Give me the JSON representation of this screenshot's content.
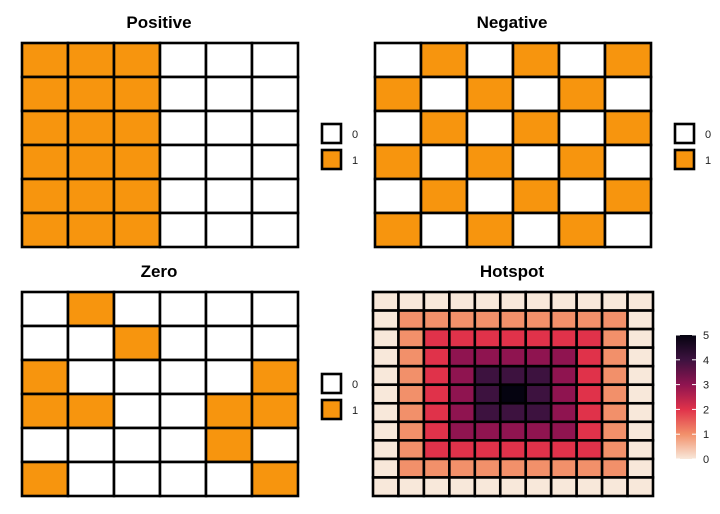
{
  "chart_data": [
    {
      "type": "heatmap",
      "title": "Positive",
      "rows": 6,
      "cols": 6,
      "values": [
        [
          1,
          1,
          1,
          0,
          0,
          0
        ],
        [
          1,
          1,
          1,
          0,
          0,
          0
        ],
        [
          1,
          1,
          1,
          0,
          0,
          0
        ],
        [
          1,
          1,
          1,
          0,
          0,
          0
        ],
        [
          1,
          1,
          1,
          0,
          0,
          0
        ],
        [
          1,
          1,
          1,
          0,
          0,
          0
        ]
      ],
      "legend": {
        "type": "discrete",
        "entries": [
          {
            "label": "0",
            "color": "#ffffff"
          },
          {
            "label": "1",
            "color": "#f7950e"
          }
        ]
      }
    },
    {
      "type": "heatmap",
      "title": "Negative",
      "rows": 6,
      "cols": 6,
      "values": [
        [
          0,
          1,
          0,
          1,
          0,
          1
        ],
        [
          1,
          0,
          1,
          0,
          1,
          0
        ],
        [
          0,
          1,
          0,
          1,
          0,
          1
        ],
        [
          1,
          0,
          1,
          0,
          1,
          0
        ],
        [
          0,
          1,
          0,
          1,
          0,
          1
        ],
        [
          1,
          0,
          1,
          0,
          1,
          0
        ]
      ],
      "legend": {
        "type": "discrete",
        "entries": [
          {
            "label": "0",
            "color": "#ffffff"
          },
          {
            "label": "1",
            "color": "#f7950e"
          }
        ]
      }
    },
    {
      "type": "heatmap",
      "title": "Zero",
      "rows": 6,
      "cols": 6,
      "values": [
        [
          0,
          1,
          0,
          0,
          0,
          0
        ],
        [
          0,
          0,
          1,
          0,
          0,
          0
        ],
        [
          1,
          0,
          0,
          0,
          0,
          1
        ],
        [
          1,
          1,
          0,
          0,
          1,
          1
        ],
        [
          0,
          0,
          0,
          0,
          1,
          0
        ],
        [
          1,
          0,
          0,
          0,
          0,
          1
        ]
      ],
      "legend": {
        "type": "discrete",
        "entries": [
          {
            "label": "0",
            "color": "#ffffff"
          },
          {
            "label": "1",
            "color": "#f7950e"
          }
        ]
      }
    },
    {
      "type": "heatmap",
      "title": "Hotspot",
      "rows": 11,
      "cols": 11,
      "values": [
        [
          0,
          0,
          0,
          0,
          0,
          0,
          0,
          0,
          0,
          0,
          0
        ],
        [
          0,
          1,
          1,
          1,
          1,
          1,
          1,
          1,
          1,
          1,
          0
        ],
        [
          0,
          1,
          2,
          2,
          2,
          2,
          2,
          2,
          2,
          1,
          0
        ],
        [
          0,
          1,
          2,
          3,
          3,
          3,
          3,
          3,
          2,
          1,
          0
        ],
        [
          0,
          1,
          2,
          3,
          4,
          4,
          4,
          3,
          2,
          1,
          0
        ],
        [
          0,
          1,
          2,
          3,
          4,
          5,
          4,
          3,
          2,
          1,
          0
        ],
        [
          0,
          1,
          2,
          3,
          4,
          4,
          4,
          3,
          2,
          1,
          0
        ],
        [
          0,
          1,
          2,
          3,
          3,
          3,
          3,
          3,
          2,
          1,
          0
        ],
        [
          0,
          1,
          2,
          2,
          2,
          2,
          2,
          2,
          2,
          1,
          0
        ],
        [
          0,
          1,
          1,
          1,
          1,
          1,
          1,
          1,
          1,
          1,
          0
        ],
        [
          0,
          0,
          0,
          0,
          0,
          0,
          0,
          0,
          0,
          0,
          0
        ]
      ],
      "legend": {
        "type": "continuous",
        "range": [
          0,
          5
        ],
        "ticks": [
          "0",
          "1",
          "2",
          "3",
          "4",
          "5"
        ],
        "colors": [
          "#f8e8da",
          "#f2906a",
          "#e0324a",
          "#8f1450",
          "#3d123f",
          "#050310"
        ]
      }
    }
  ]
}
